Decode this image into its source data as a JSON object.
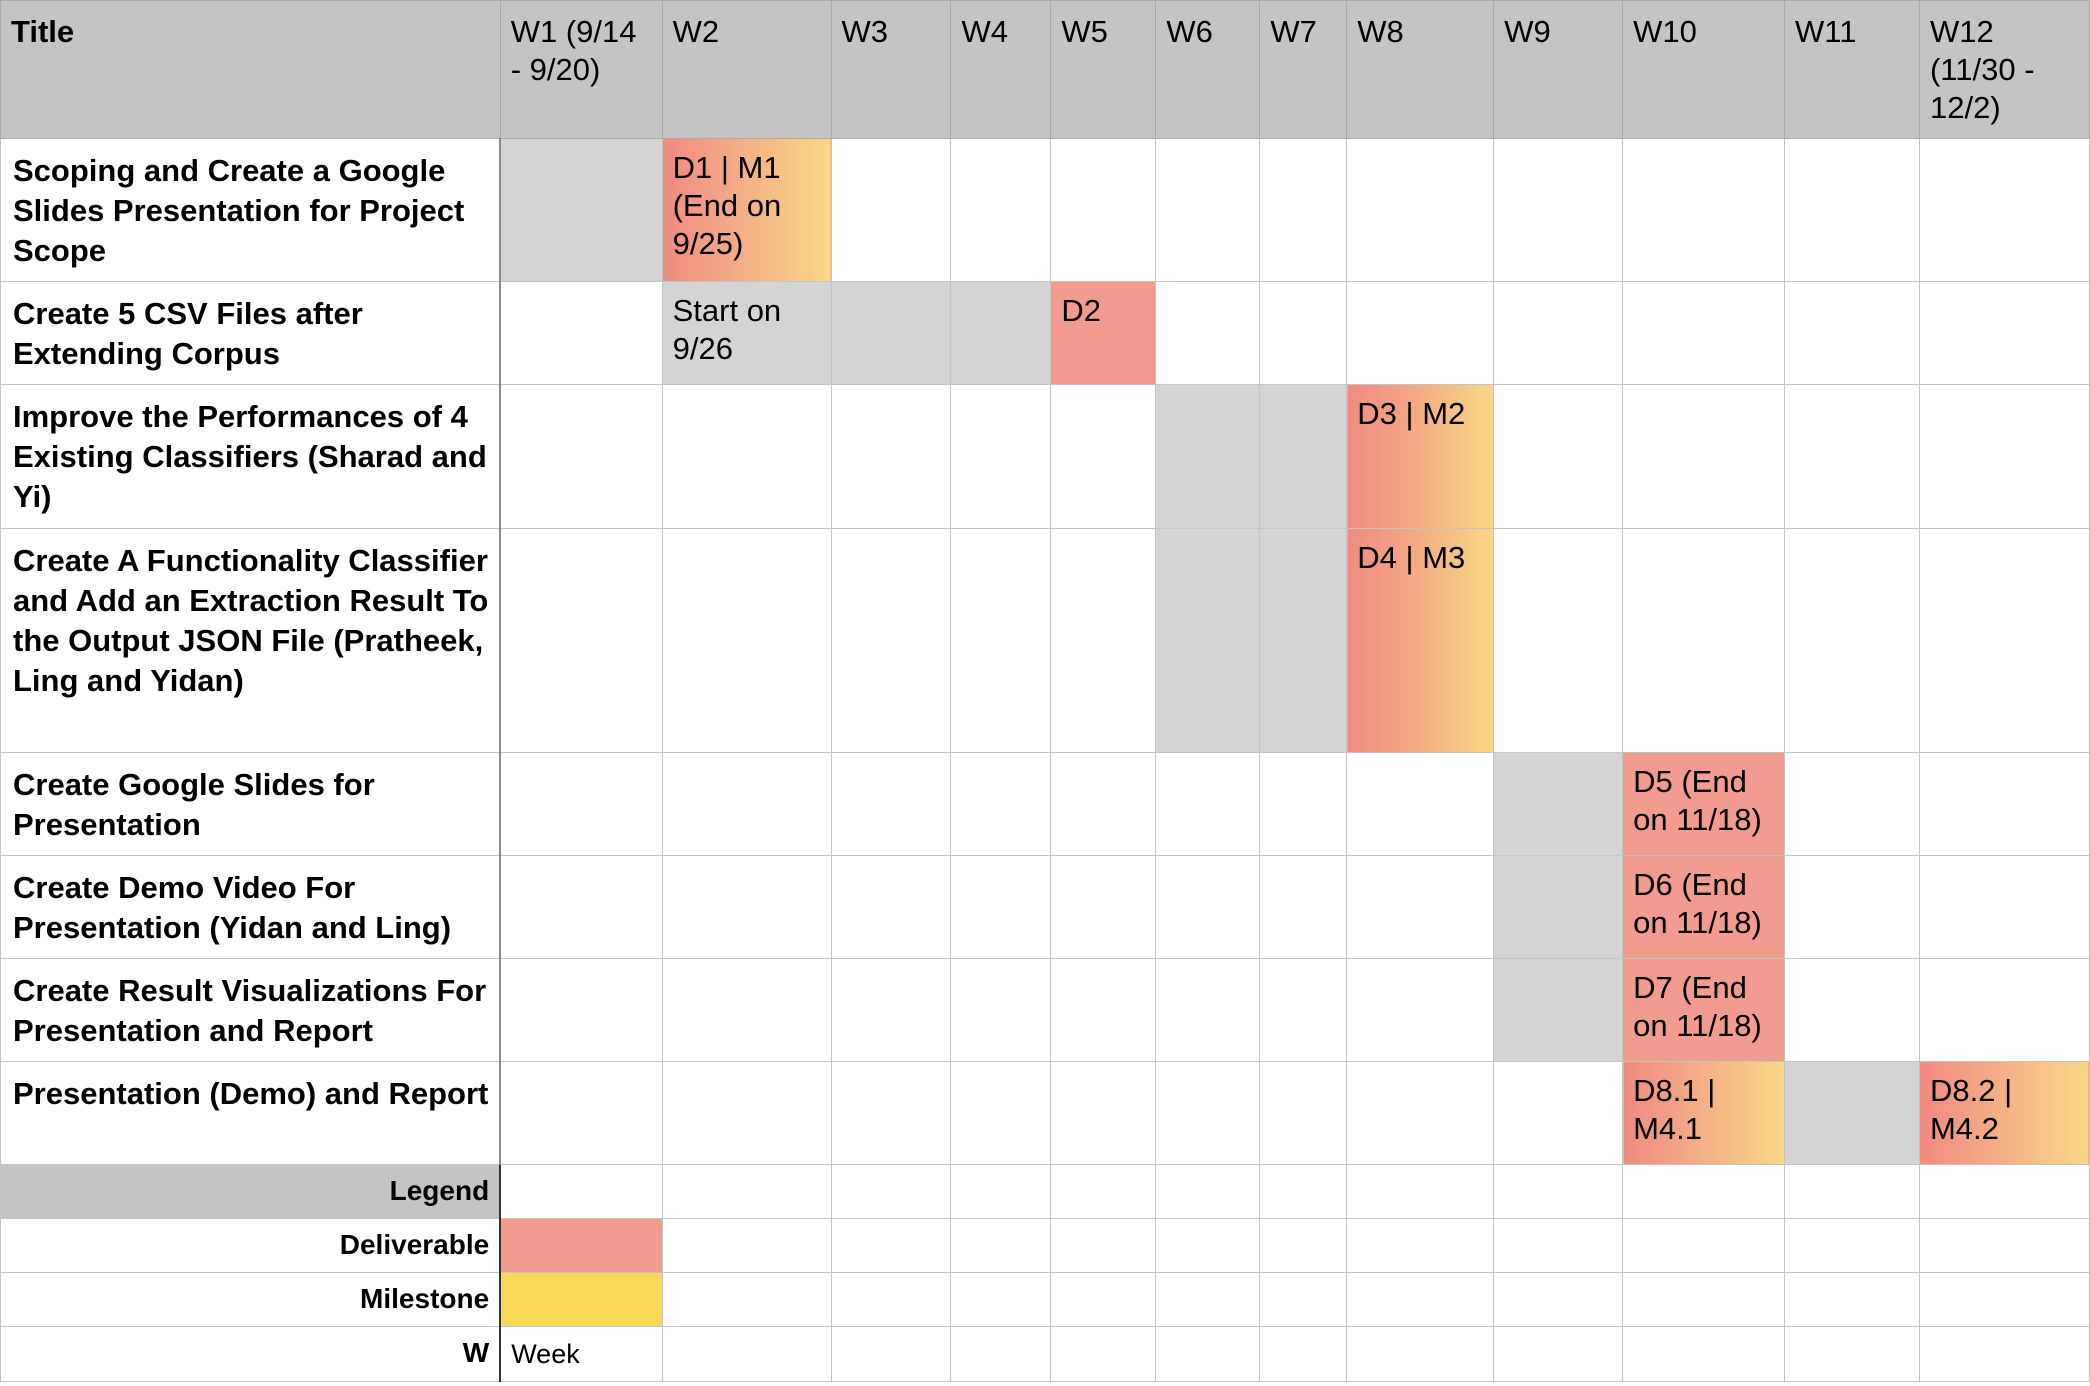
{
  "header": {
    "title": "Title",
    "weeks": [
      "W1 (9/14 - 9/20)",
      "W2",
      "W3",
      "W4",
      "W5",
      "W6",
      "W7",
      "W8",
      "W9",
      "W10",
      "W11",
      "W12 (11/30 - 12/2)"
    ]
  },
  "tasks": [
    {
      "title": "Scoping and Create a Google Slides Presentation for Project Scope",
      "cells": {
        "w2": "D1 | M1 (End on 9/25)"
      }
    },
    {
      "title": "Create 5 CSV Files after Extending Corpus",
      "cells": {
        "w2": "Start on 9/26",
        "w5": "D2"
      }
    },
    {
      "title": "Improve the Performances of 4 Existing Classifiers (Sharad and Yi)",
      "cells": {
        "w8": "D3 | M2"
      }
    },
    {
      "title": "Create A Functionality Classifier and Add an Extraction Result To the Output JSON File (Pratheek, Ling and Yidan)",
      "cells": {
        "w8": "D4 | M3"
      }
    },
    {
      "title": "Create Google Slides for Presentation",
      "cells": {
        "w10": "D5 (End on 11/18)"
      }
    },
    {
      "title": "Create Demo Video For Presentation (Yidan and Ling)",
      "cells": {
        "w10": "D6 (End on 11/18)"
      }
    },
    {
      "title": "Create Result Visualizations For Presentation and Report",
      "cells": {
        "w10": "D7 (End on 11/18)"
      }
    },
    {
      "title": "Presentation (Demo) and Report",
      "cells": {
        "w10": "D8.1 | M4.1",
        "w12": "D8.2 | M4.2"
      }
    }
  ],
  "legend": {
    "title": "Legend",
    "deliverable": "Deliverable",
    "milestone": "Milestone",
    "week_key": "W",
    "week_value": "Week"
  },
  "colors": {
    "header_gray": "#c4c4c4",
    "span_gray": "#d4d4d4",
    "deliverable": "#f29b8f",
    "milestone": "#f8da58"
  }
}
